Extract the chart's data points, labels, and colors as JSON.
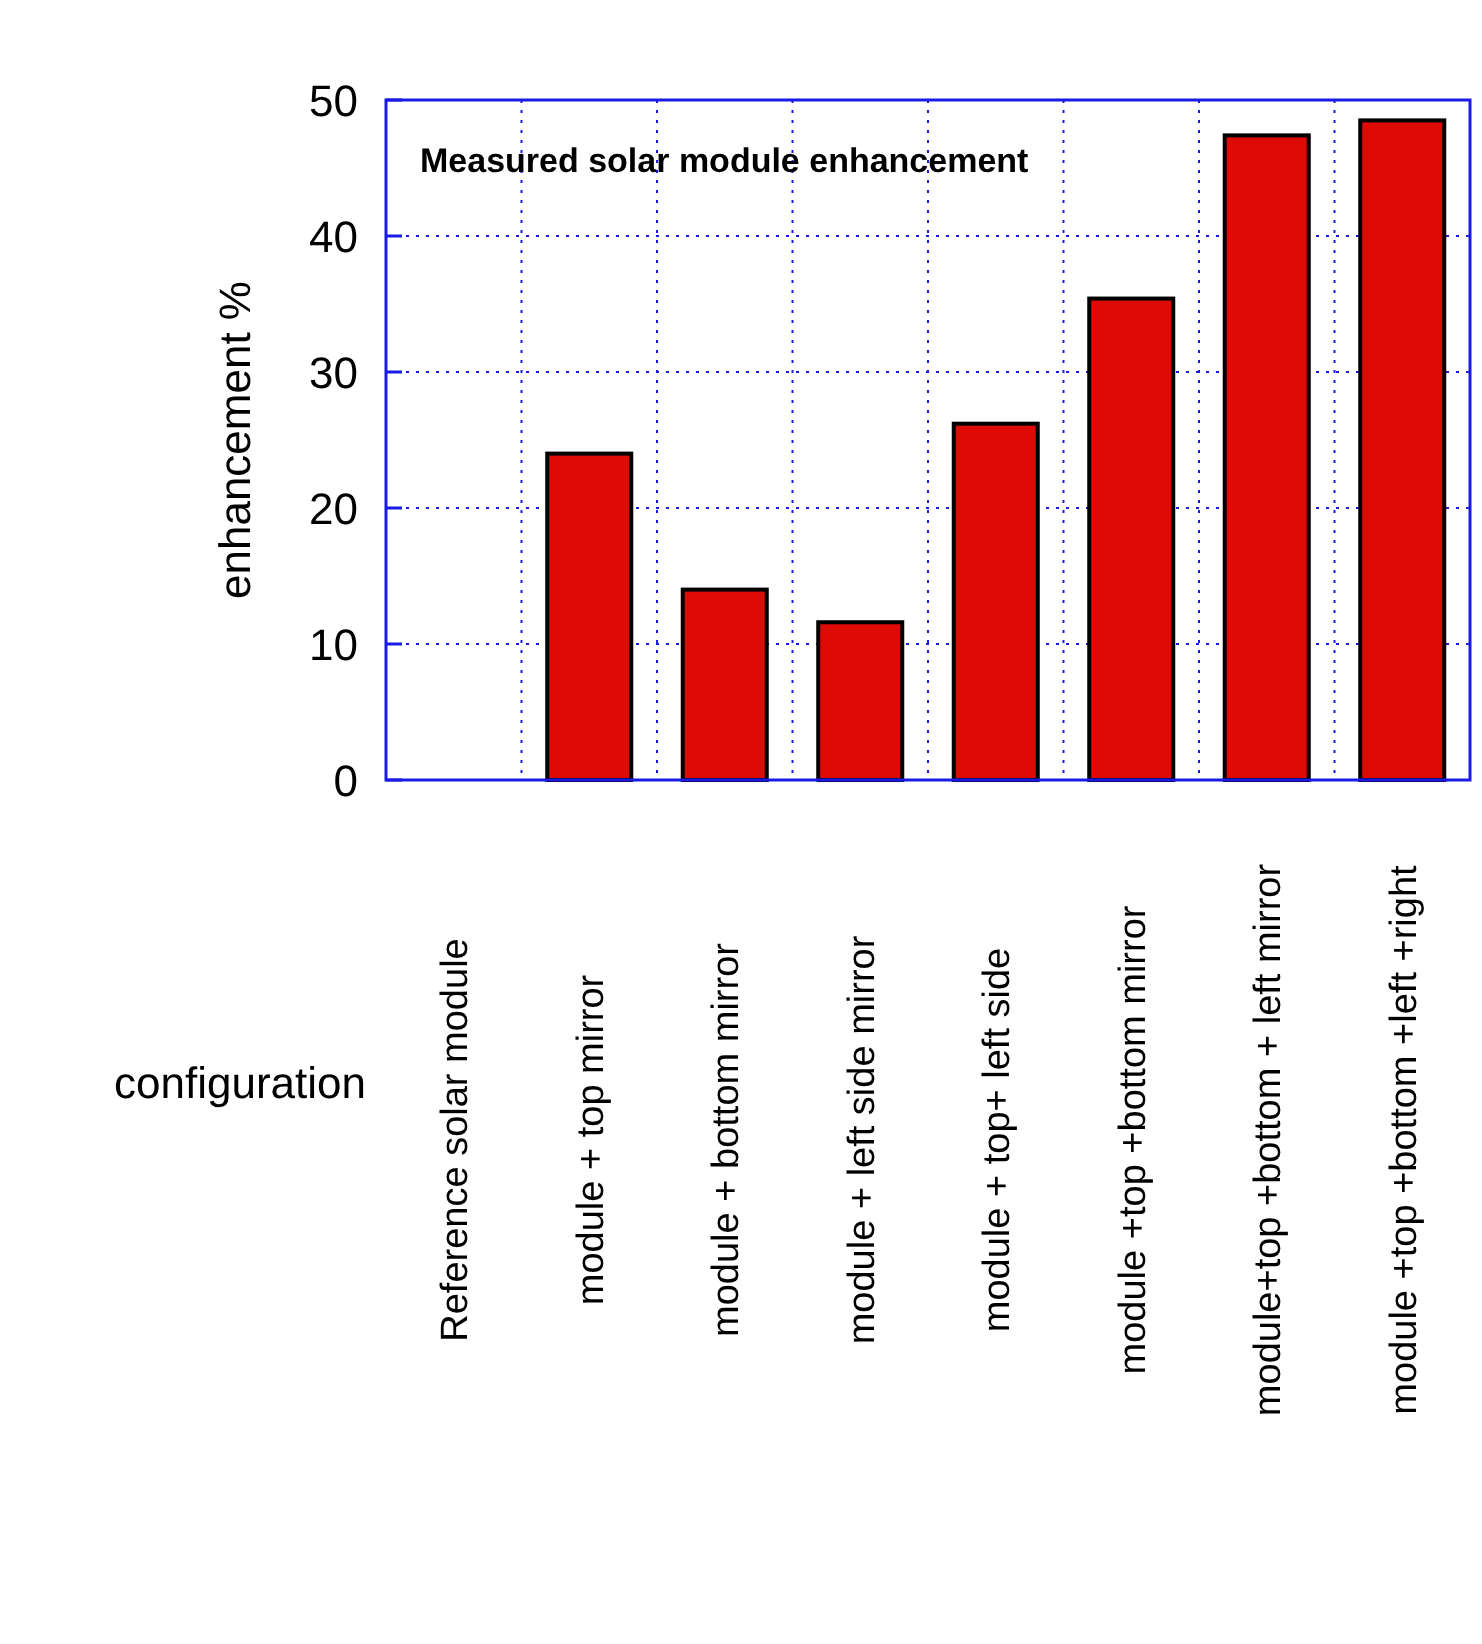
{
  "chart_data": {
    "type": "bar",
    "xlabel": "configuration",
    "ylabel": "enhancement %",
    "annotations": [
      "Measured solar module enhancement"
    ],
    "categories": [
      "Reference solar module",
      "module + top mirror",
      "module + bottom mirror",
      "module + left side mirror",
      "module + top+ left side",
      "module +top +bottom mirror",
      "module+top +bottom + left mirror",
      "module +top +bottom +left +right"
    ],
    "values": [
      0,
      24,
      14,
      11.6,
      26.2,
      35.4,
      47.4,
      48.5
    ],
    "color": "#dd0a06",
    "ylim": [
      0,
      50
    ],
    "yticks": [
      0,
      10,
      20,
      30,
      40,
      50
    ],
    "grid": true
  }
}
